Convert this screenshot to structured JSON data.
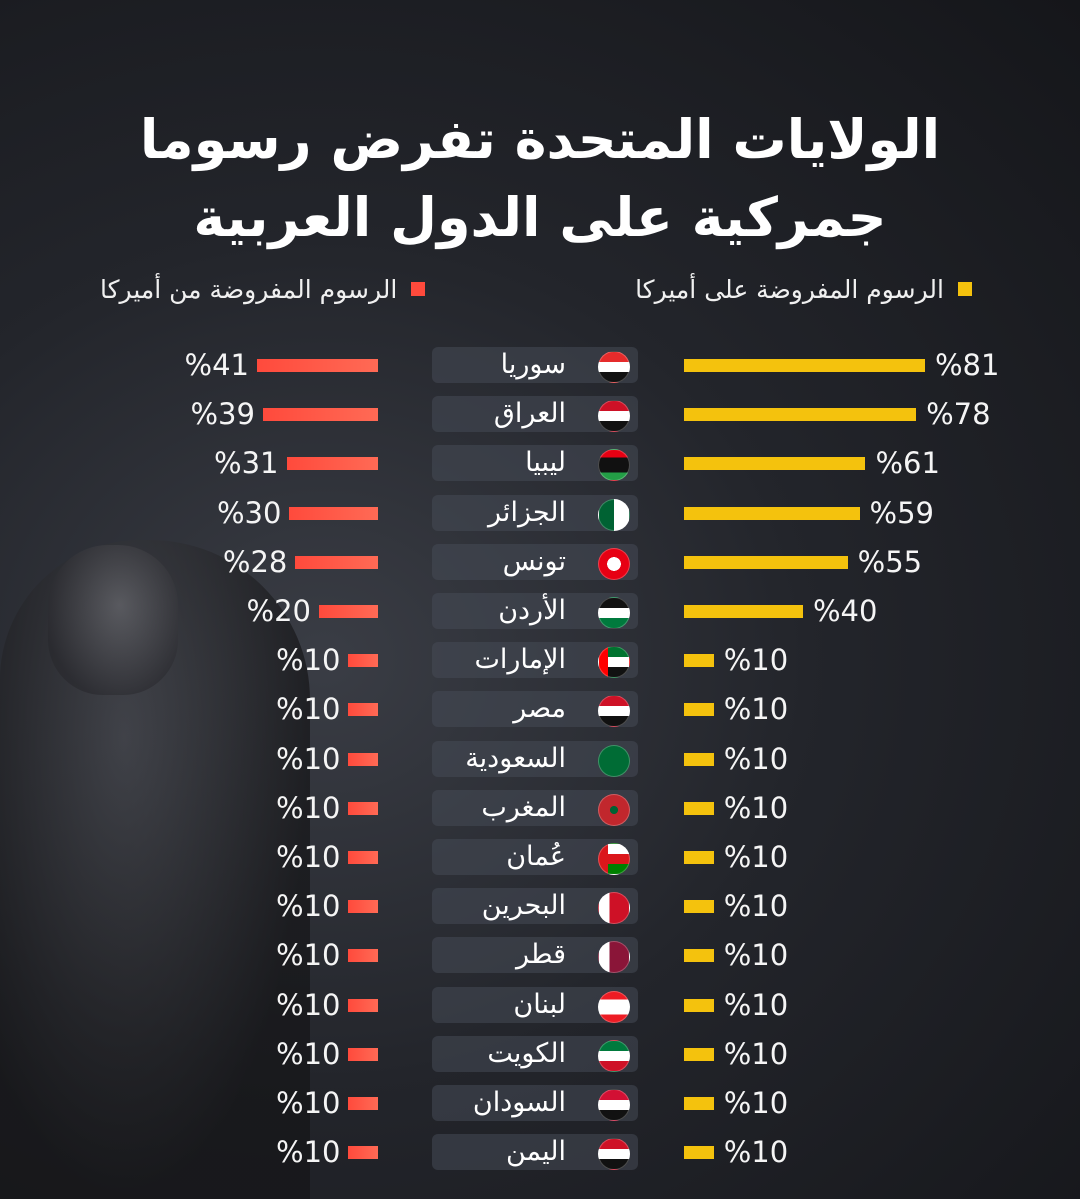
{
  "title": {
    "line1": "الولايات المتحدة تفرض رسوما",
    "line2": "جمركية على الدول العربية"
  },
  "legend": {
    "imposed_on_america": "الرسوم المفروضة على أميركا",
    "imposed_by_america": "الرسوم المفروضة من أميركا"
  },
  "colors": {
    "imposed_on_america": "#f4c20d",
    "imposed_by_america": "#ff4a3c"
  },
  "chart_data": {
    "type": "bar",
    "title": "الولايات المتحدة تفرض رسوما جمركية على الدول العربية",
    "unit": "%",
    "categories": [
      "سوريا",
      "العراق",
      "ليبيا",
      "الجزائر",
      "تونس",
      "الأردن",
      "الإمارات",
      "مصر",
      "السعودية",
      "المغرب",
      "عُمان",
      "البحرين",
      "قطر",
      "لبنان",
      "الكويت",
      "السودان",
      "اليمن"
    ],
    "series": [
      {
        "name": "الرسوم المفروضة على أميركا",
        "values": [
          81,
          78,
          61,
          59,
          55,
          40,
          10,
          10,
          10,
          10,
          10,
          10,
          10,
          10,
          10,
          10,
          10
        ]
      },
      {
        "name": "الرسوم المفروضة من أميركا",
        "values": [
          41,
          39,
          31,
          30,
          28,
          20,
          10,
          10,
          10,
          10,
          10,
          10,
          10,
          10,
          10,
          10,
          10
        ]
      }
    ],
    "labels_us": [
      "%81",
      "%78",
      "%61",
      "%59",
      "%55",
      "%40",
      "%10",
      "%10",
      "%10",
      "%10",
      "%10",
      "%10",
      "%10",
      "%10",
      "%10",
      "%10",
      "%10"
    ],
    "labels_them": [
      "%41",
      "%39",
      "%31",
      "%30",
      "%28",
      "%20",
      "%10",
      "%10",
      "%10",
      "%10",
      "%10",
      "%10",
      "%10",
      "%10",
      "%10",
      "%10",
      "%10"
    ],
    "flags": [
      "syria-flag-icon",
      "iraq-flag-icon",
      "libya-flag-icon",
      "algeria-flag-icon",
      "tunisia-flag-icon",
      "jordan-flag-icon",
      "uae-flag-icon",
      "egypt-flag-icon",
      "saudi-flag-icon",
      "morocco-flag-icon",
      "oman-flag-icon",
      "bahrain-flag-icon",
      "qatar-flag-icon",
      "lebanon-flag-icon",
      "kuwait-flag-icon",
      "sudan-flag-icon",
      "yemen-flag-icon"
    ]
  }
}
